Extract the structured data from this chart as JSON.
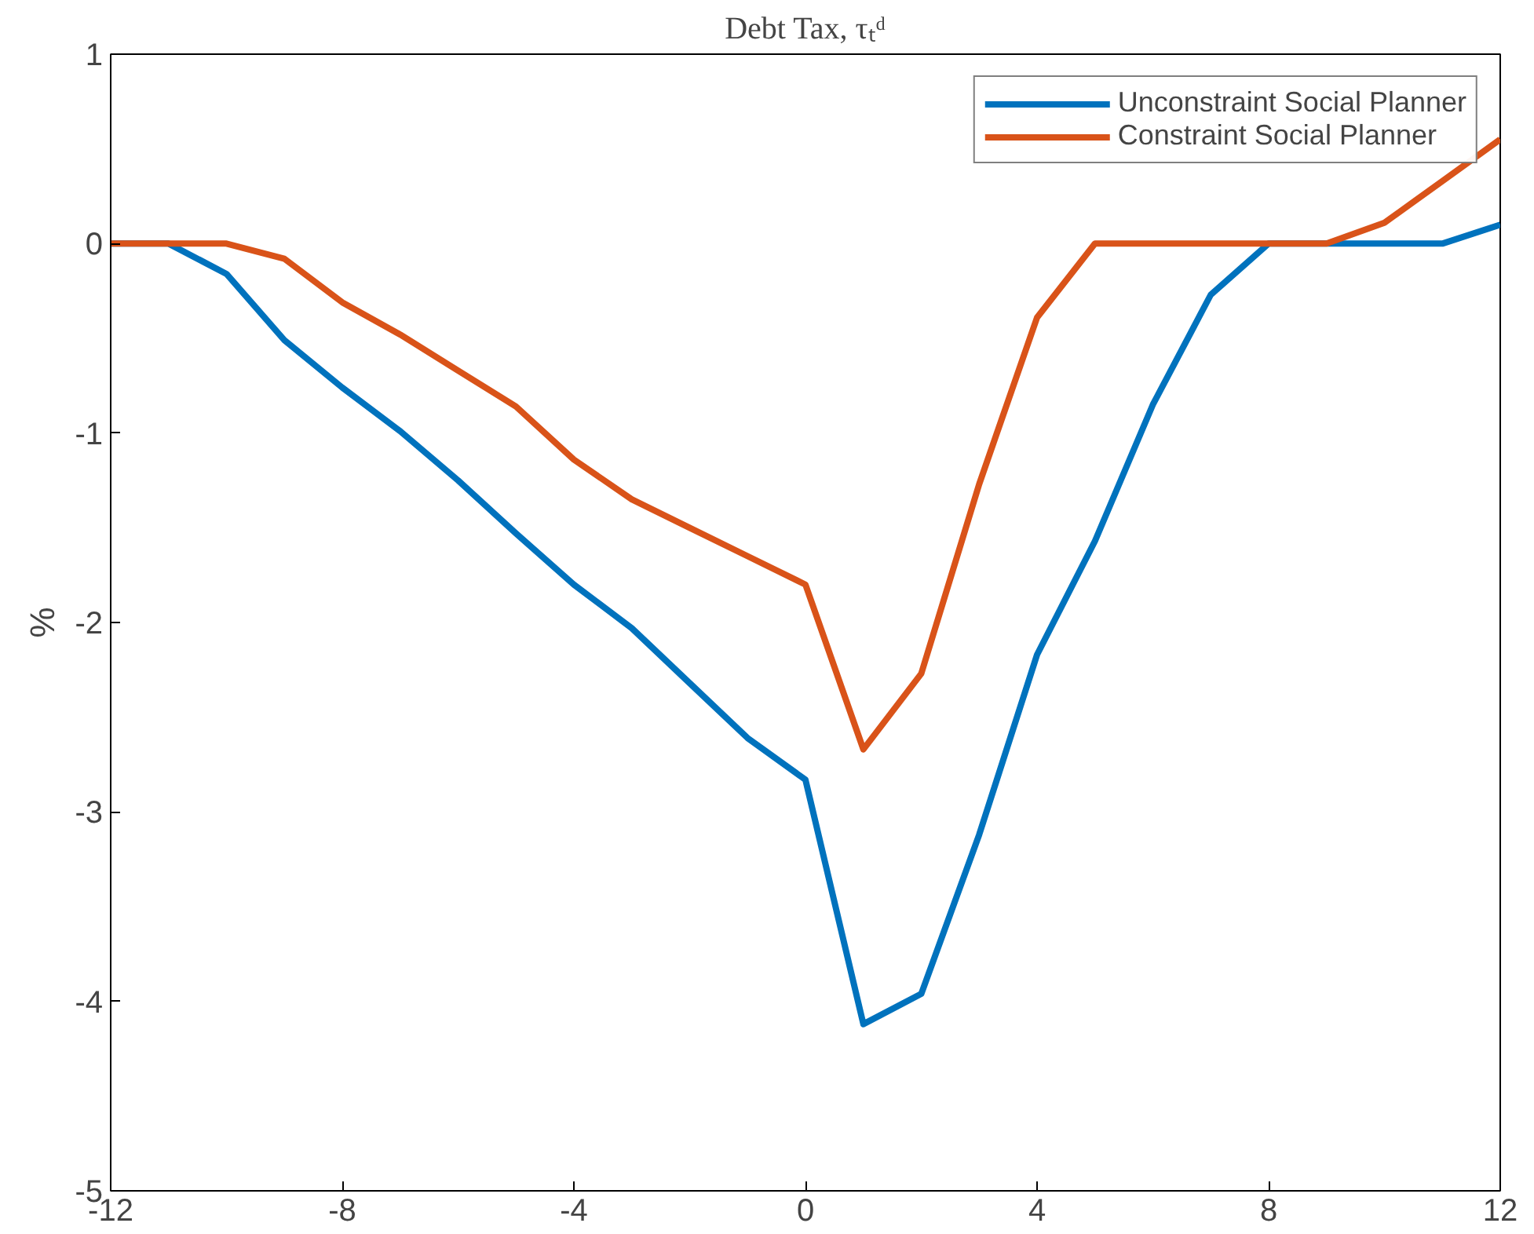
{
  "chart_data": {
    "type": "line",
    "title": "Debt Tax, τₜᵈ",
    "ylabel": "%",
    "x": [
      -12,
      -11,
      -10,
      -9,
      -8,
      -7,
      -6,
      -5,
      -4,
      -3,
      -2,
      -1,
      0,
      1,
      2,
      3,
      4,
      5,
      6,
      7,
      8,
      9,
      10,
      11,
      12
    ],
    "series": [
      {
        "name": "Unconstraint Social Planner",
        "color": "#0072bd",
        "values": [
          0,
          0,
          -0.16,
          -0.51,
          -0.76,
          -0.99,
          -1.25,
          -1.53,
          -1.8,
          -2.03,
          -2.32,
          -2.61,
          -2.83,
          -4.12,
          -3.96,
          -3.12,
          -2.17,
          -1.57,
          -0.85,
          -0.27,
          0,
          0,
          0,
          0,
          0.1
        ]
      },
      {
        "name": "Constraint Social Planner",
        "color": "#d95319",
        "values": [
          0,
          0,
          0,
          -0.08,
          -0.31,
          -0.48,
          -0.67,
          -0.86,
          -1.14,
          -1.35,
          -1.5,
          -1.65,
          -1.8,
          -2.67,
          -2.27,
          -1.27,
          -0.39,
          0,
          0,
          0,
          0,
          0,
          0.11,
          0.33,
          0.55
        ]
      }
    ],
    "xlim": [
      -12,
      12
    ],
    "xticks": [
      -12,
      -8,
      -4,
      0,
      4,
      8,
      12
    ],
    "ylim": [
      -5,
      1
    ],
    "yticks": [
      -5,
      -4,
      -3,
      -2,
      -1,
      0,
      1
    ],
    "grid": false,
    "legend": "top right",
    "line_style": "solid",
    "marker": "none"
  }
}
